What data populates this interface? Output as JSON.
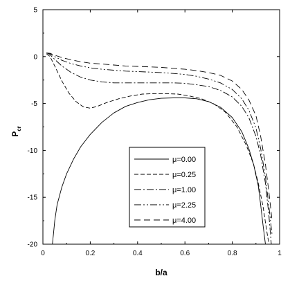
{
  "chart_data": {
    "type": "line",
    "title": "",
    "xlabel": "b/a",
    "ylabel_main": "P",
    "ylabel_sub": "cr",
    "xlim": [
      0,
      1
    ],
    "ylim": [
      -20,
      5
    ],
    "xticks": [
      0,
      0.2,
      0.4,
      0.6,
      0.8,
      1
    ],
    "xtick_labels": [
      "0",
      "0.2",
      "0.4",
      "0.6",
      "0.8",
      "1"
    ],
    "yticks": [
      5,
      0,
      -5,
      -10,
      -15,
      -20
    ],
    "ytick_labels": [
      "5",
      "0",
      "-5",
      "-10",
      "-15",
      "-20"
    ],
    "grid": false,
    "legend_position": "lower-center",
    "series": [
      {
        "name": "μ=0.00",
        "dash": "solid",
        "x": [
          0.04,
          0.045,
          0.05,
          0.06,
          0.08,
          0.1,
          0.13,
          0.16,
          0.2,
          0.25,
          0.3,
          0.35,
          0.4,
          0.45,
          0.5,
          0.55,
          0.6,
          0.65,
          0.7,
          0.75,
          0.8,
          0.84,
          0.87,
          0.89,
          0.91,
          0.92,
          0.93,
          0.94
        ],
        "y": [
          -20.0,
          -18.8,
          -17.5,
          -15.8,
          -13.9,
          -12.5,
          -10.9,
          -9.6,
          -8.3,
          -7.0,
          -6.0,
          -5.3,
          -4.9,
          -4.6,
          -4.45,
          -4.4,
          -4.4,
          -4.5,
          -4.8,
          -5.4,
          -6.5,
          -8.0,
          -9.8,
          -11.5,
          -13.8,
          -15.8,
          -18.0,
          -20.0
        ]
      },
      {
        "name": "μ=0.25",
        "dash": "6 3",
        "x": [
          0.015,
          0.03,
          0.05,
          0.08,
          0.11,
          0.14,
          0.17,
          0.2,
          0.23,
          0.27,
          0.32,
          0.37,
          0.42,
          0.47,
          0.52,
          0.57,
          0.62,
          0.67,
          0.72,
          0.77,
          0.82,
          0.86,
          0.89,
          0.91,
          0.93,
          0.945,
          0.955
        ],
        "y": [
          0.3,
          0.0,
          -1.0,
          -2.6,
          -3.9,
          -4.8,
          -5.35,
          -5.5,
          -5.3,
          -4.9,
          -4.5,
          -4.2,
          -4.0,
          -3.95,
          -3.95,
          -4.0,
          -4.2,
          -4.5,
          -5.0,
          -5.9,
          -7.5,
          -9.5,
          -11.5,
          -13.5,
          -16.0,
          -18.5,
          -20.0
        ]
      },
      {
        "name": "μ=1.00",
        "dash": "10 3 2 3",
        "x": [
          0.015,
          0.03,
          0.05,
          0.08,
          0.12,
          0.16,
          0.2,
          0.25,
          0.3,
          0.35,
          0.4,
          0.45,
          0.5,
          0.55,
          0.6,
          0.65,
          0.7,
          0.75,
          0.8,
          0.84,
          0.87,
          0.9,
          0.92,
          0.94,
          0.955,
          0.965
        ],
        "y": [
          0.4,
          0.2,
          -0.3,
          -1.0,
          -1.7,
          -2.2,
          -2.5,
          -2.7,
          -2.8,
          -2.8,
          -2.8,
          -2.8,
          -2.8,
          -2.8,
          -2.85,
          -3.0,
          -3.2,
          -3.6,
          -4.3,
          -5.3,
          -6.5,
          -8.5,
          -10.5,
          -13.5,
          -17.0,
          -20.0
        ]
      },
      {
        "name": "μ=2.25",
        "dash": "10 3 2 3 2 3",
        "x": [
          0.015,
          0.03,
          0.05,
          0.08,
          0.12,
          0.16,
          0.2,
          0.25,
          0.3,
          0.35,
          0.4,
          0.45,
          0.5,
          0.55,
          0.6,
          0.65,
          0.7,
          0.75,
          0.8,
          0.84,
          0.87,
          0.9,
          0.92,
          0.94,
          0.955,
          0.968
        ],
        "y": [
          0.4,
          0.3,
          0.0,
          -0.4,
          -0.75,
          -1.0,
          -1.2,
          -1.35,
          -1.45,
          -1.55,
          -1.6,
          -1.65,
          -1.7,
          -1.8,
          -1.9,
          -2.1,
          -2.4,
          -2.8,
          -3.5,
          -4.5,
          -5.7,
          -7.6,
          -9.8,
          -12.8,
          -16.0,
          -19.0
        ]
      },
      {
        "name": "μ=4.00",
        "dash": "9 5",
        "x": [
          0.015,
          0.03,
          0.05,
          0.08,
          0.12,
          0.16,
          0.2,
          0.25,
          0.3,
          0.35,
          0.4,
          0.45,
          0.5,
          0.55,
          0.6,
          0.65,
          0.7,
          0.75,
          0.8,
          0.84,
          0.87,
          0.9,
          0.92,
          0.94,
          0.955,
          0.968
        ],
        "y": [
          0.4,
          0.35,
          0.15,
          -0.1,
          -0.35,
          -0.55,
          -0.7,
          -0.8,
          -0.9,
          -1.0,
          -1.05,
          -1.1,
          -1.15,
          -1.25,
          -1.35,
          -1.5,
          -1.7,
          -2.0,
          -2.6,
          -3.5,
          -4.6,
          -6.3,
          -8.5,
          -11.5,
          -14.5,
          -17.5
        ]
      }
    ]
  }
}
